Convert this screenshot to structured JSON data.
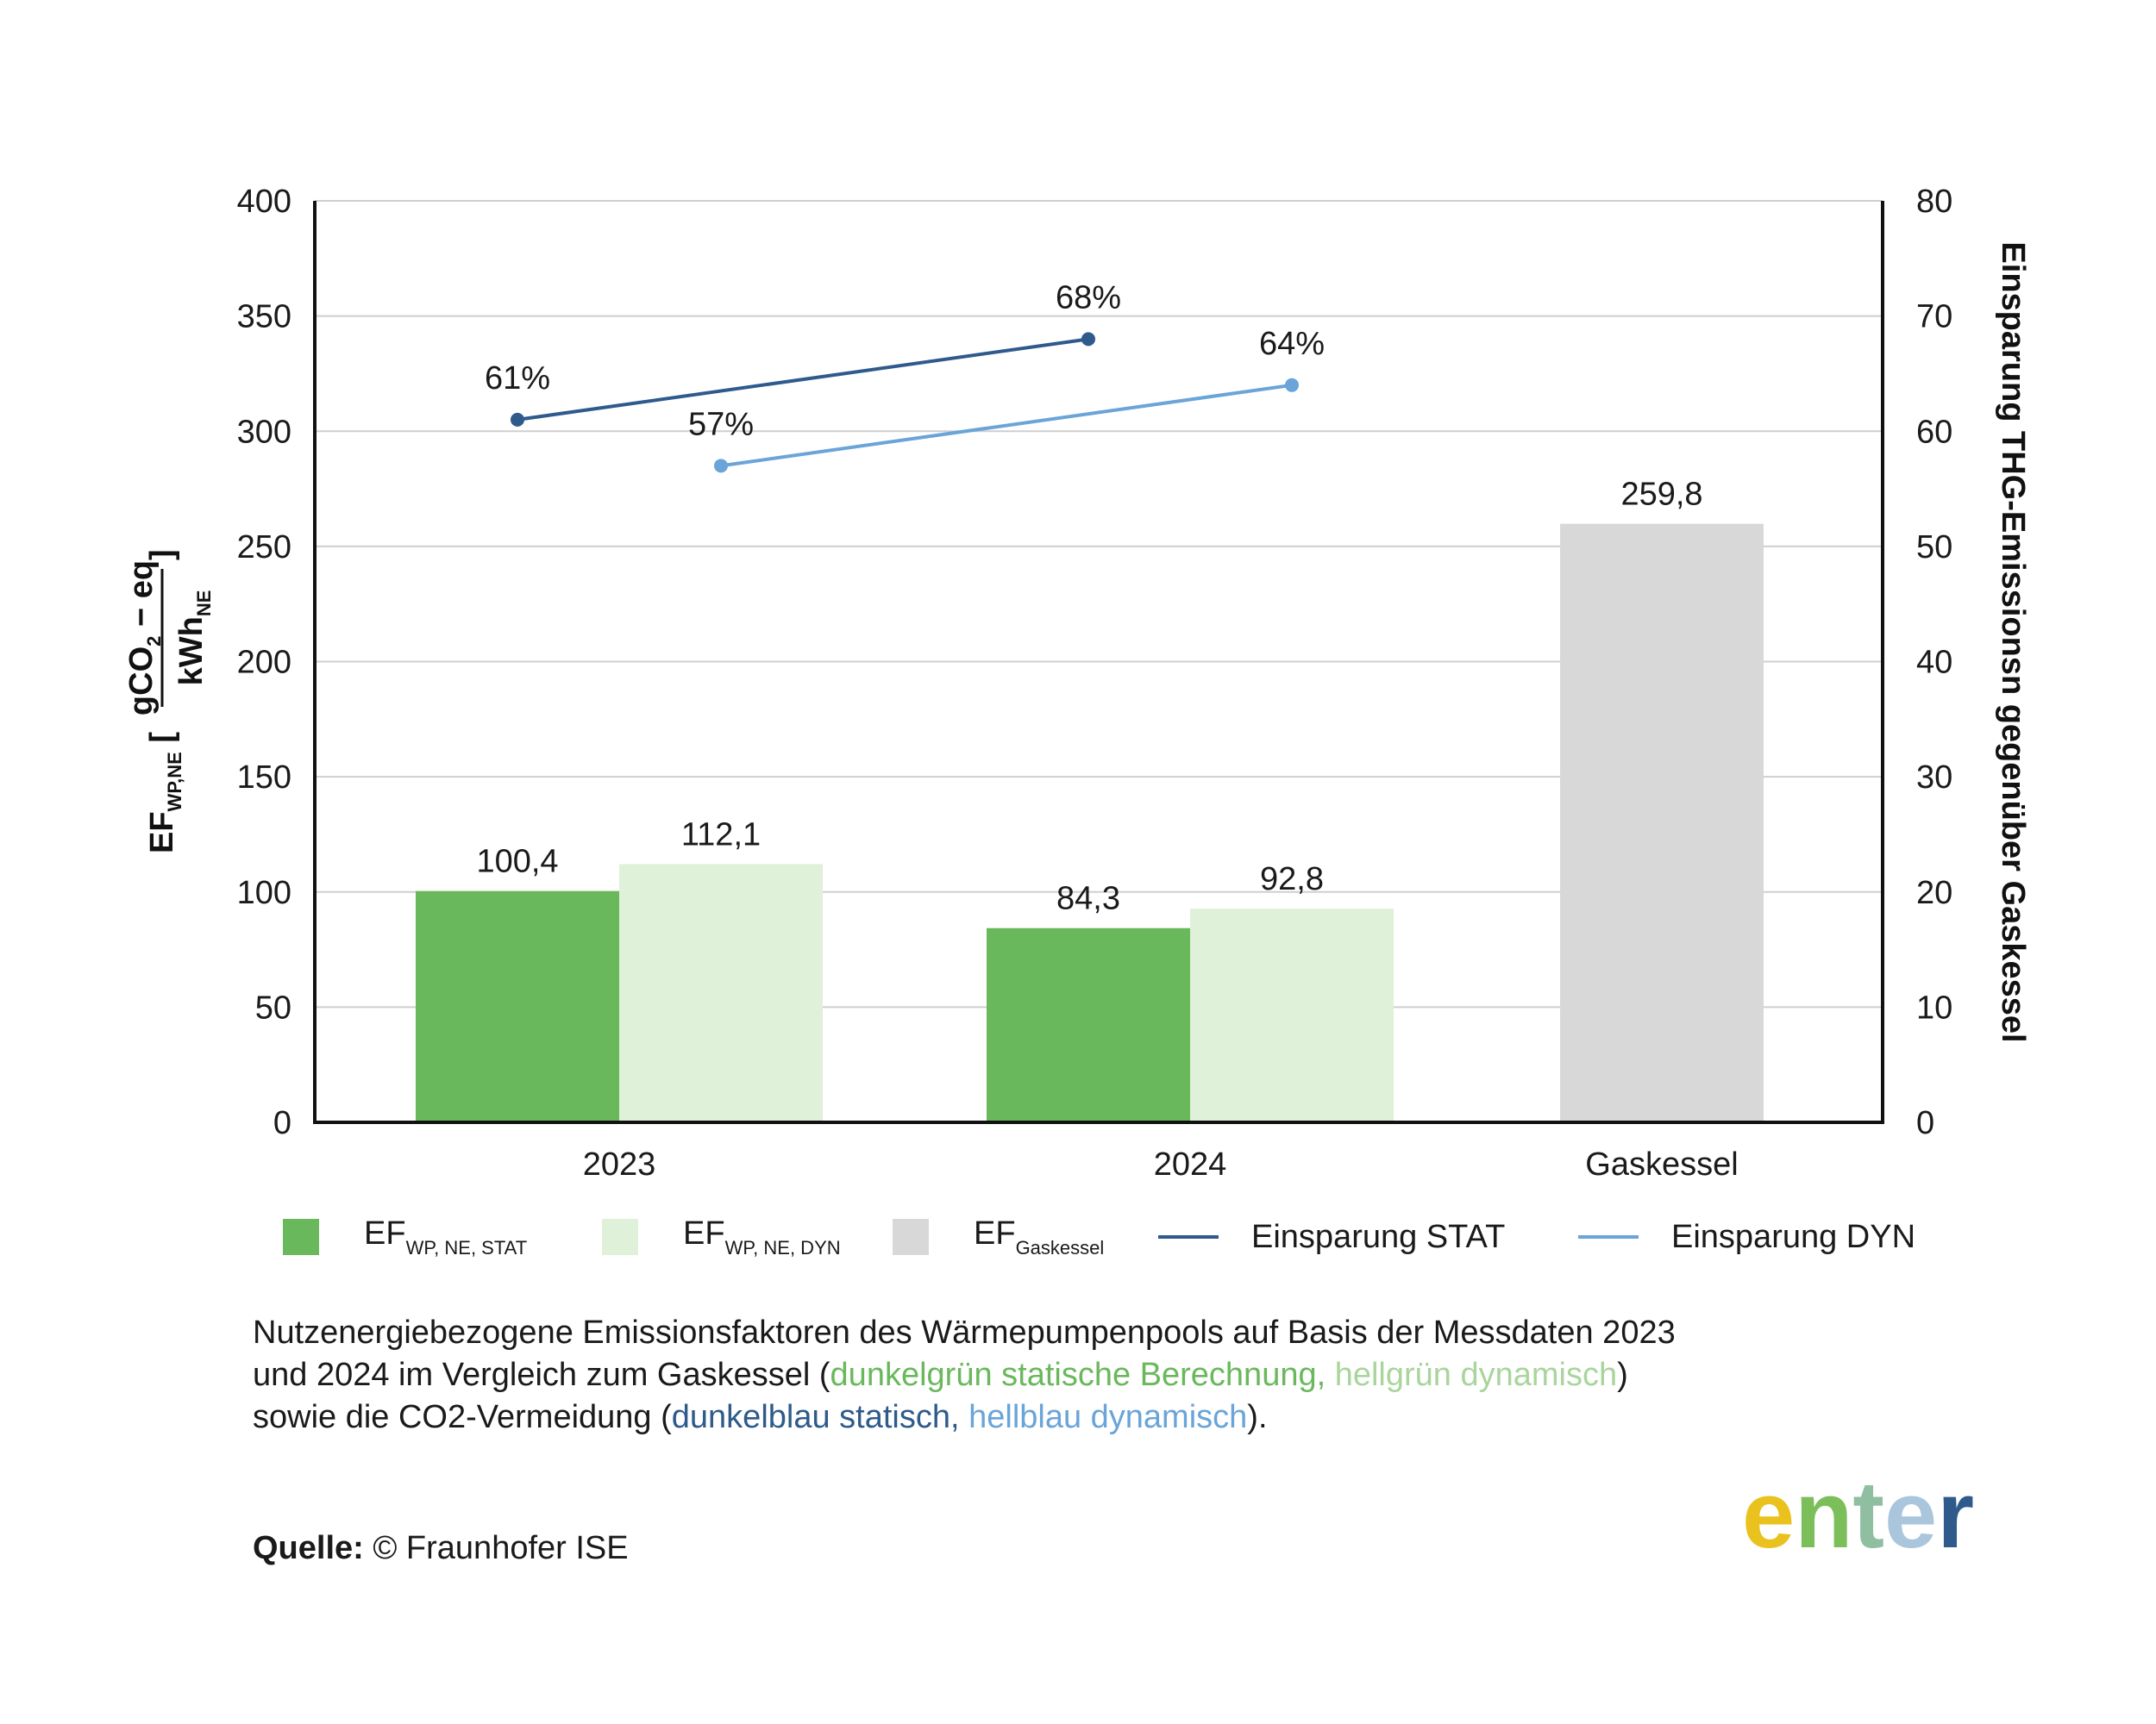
{
  "chart_data": {
    "type": "bar",
    "categories": [
      "2023",
      "2024",
      "Gaskessel"
    ],
    "series": [
      {
        "name": "EF_WP, NE, STAT",
        "values": [
          100.4,
          84.3,
          null
        ],
        "color": "#6ab85c",
        "labels": [
          "100,4",
          "84,3",
          ""
        ]
      },
      {
        "name": "EF_WP, NE, DYN",
        "values": [
          112.1,
          92.8,
          null
        ],
        "color": "#e0f1d9",
        "labels": [
          "112,1",
          "92,8",
          ""
        ]
      },
      {
        "name": "EF_Gaskessel",
        "values": [
          null,
          null,
          259.8
        ],
        "color": "#d9d8d9",
        "labels": [
          "",
          "",
          "259,8"
        ]
      }
    ],
    "lines": [
      {
        "name": "Einsparung STAT",
        "color": "#2e5a8c",
        "points": [
          {
            "x": "2023",
            "y": 61,
            "label": "61%"
          },
          {
            "x": "2024",
            "y": 68,
            "label": "68%"
          }
        ]
      },
      {
        "name": "Einsparung DYN",
        "color": "#6aa4d8",
        "points": [
          {
            "x": "2023",
            "y": 57,
            "label": "57%"
          },
          {
            "x": "2024",
            "y": 64,
            "label": "64%"
          }
        ]
      }
    ],
    "ylim": [
      0,
      400
    ],
    "yticks": [
      0,
      50,
      100,
      150,
      200,
      250,
      300,
      350,
      400
    ],
    "y2lim": [
      0,
      80
    ],
    "y2ticks": [
      0,
      10,
      20,
      30,
      40,
      50,
      60,
      70,
      80
    ],
    "ylabel": "EF WP,NE [ gCO2 − eq / kWh NE ]",
    "ylabel_parts": {
      "ef": "EF",
      "ef_sub": "WP,NE",
      "num": "gCO",
      "num_sub": "2",
      "num_rest": " − eq",
      "den": "kWh",
      "den_sub": "NE"
    },
    "y2label": "Einsparung THG-Emissionsn gegenüber Gaskessel",
    "grid": true,
    "legend_position": "bottom"
  },
  "legend": [
    {
      "kind": "swatch",
      "color": "#6ab85c",
      "main": "EF",
      "sub": "WP, NE, STAT"
    },
    {
      "kind": "swatch",
      "color": "#e0f1d9",
      "main": "EF",
      "sub": "WP, NE, DYN"
    },
    {
      "kind": "swatch",
      "color": "#d9d8d9",
      "main": "EF",
      "sub": "Gaskessel"
    },
    {
      "kind": "line",
      "color": "#2e5a8c",
      "main": "Einsparung STAT",
      "sub": ""
    },
    {
      "kind": "line",
      "color": "#6aa4d8",
      "main": "Einsparung DYN",
      "sub": ""
    }
  ],
  "caption": {
    "line1": "Nutzenergiebezogene Emissionsfaktoren des Wärmepumpenpools auf Basis der Messdaten 2023",
    "line2_a": "und 2024 im Vergleich zum Gaskessel (",
    "line2_green_dark": "dunkelgrün statische Berechnung,",
    "line2_green_light": " hellgrün dynamisch",
    "line2_b": ")",
    "line3_a": "sowie die CO2-Vermeidung (",
    "line3_blue_dark": "dunkelblau statisch,",
    "line3_blue_light": " hellblau dynamisch",
    "line3_b": ").",
    "colors": {
      "green_dark": "#6ab85c",
      "green_light": "#a9d59c",
      "blue_dark": "#2e5a8c",
      "blue_light": "#6aa4d8"
    }
  },
  "source": {
    "label": "Quelle:",
    "text": " © Fraunhofer ISE"
  },
  "logo": {
    "text": "enter",
    "letters": [
      "e",
      "n",
      "t",
      "e",
      "r"
    ],
    "colors": [
      "#e9c21e",
      "#7cbf5a",
      "#8fbfa0",
      "#a9c6dd",
      "#2e5a8c"
    ]
  }
}
